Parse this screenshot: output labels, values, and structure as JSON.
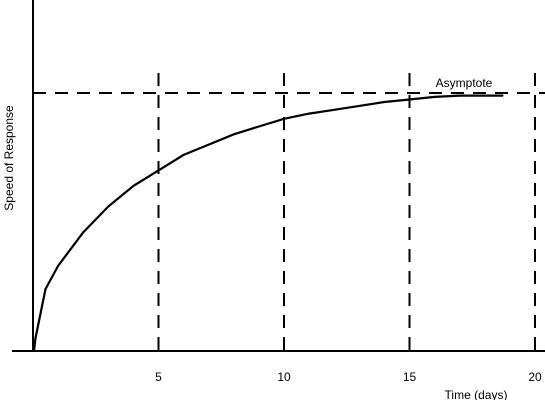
{
  "chart_data": {
    "type": "line",
    "ylabel": "Speed of Response",
    "xlabel": "Time (days)",
    "xlim": [
      0,
      20.5
    ],
    "ylim": [
      0,
      1.1
    ],
    "x_ticks": [
      5,
      10,
      15,
      20
    ],
    "x_tick_labels": [
      "5",
      "10",
      "15",
      "20"
    ],
    "grid": "vertical dashed lines at x ticks",
    "series": [
      {
        "x": [
          0.1,
          0.5,
          1,
          2,
          3,
          4,
          5,
          6,
          7,
          8,
          9,
          10,
          11,
          12,
          13,
          14,
          15,
          16,
          17,
          18,
          18.7
        ],
        "y": [
          0.05,
          0.24,
          0.33,
          0.46,
          0.56,
          0.64,
          0.7,
          0.76,
          0.8,
          0.84,
          0.87,
          0.9,
          0.92,
          0.935,
          0.95,
          0.965,
          0.975,
          0.985,
          0.99,
          0.99,
          0.99
        ]
      }
    ],
    "annotations": [
      {
        "text": "Asymptote",
        "y": 1.0,
        "style": "dashed horizontal line"
      }
    ]
  }
}
